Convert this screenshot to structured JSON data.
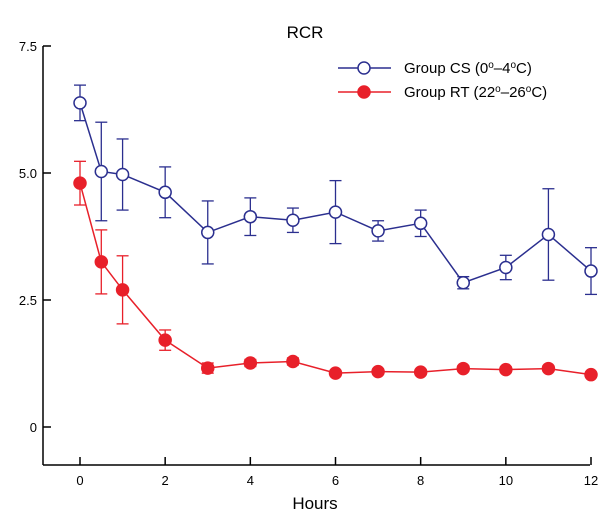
{
  "chart_data": {
    "type": "line",
    "title": "RCR",
    "xlabel": "Hours",
    "ylabel": "",
    "xlim": [
      -0.85,
      12.1
    ],
    "ylim": [
      -1.5,
      7.5
    ],
    "x_ticks": [
      0,
      2,
      4,
      6,
      8,
      10,
      12
    ],
    "x_tick_labels": [
      "0",
      "2",
      "4",
      "6",
      "8",
      "10",
      "12"
    ],
    "y_ticks": [
      0,
      2.5,
      5.0,
      7.5
    ],
    "y_tick_labels": [
      "0",
      "2.5",
      "5.0",
      "7.5"
    ],
    "grid": false,
    "legend_position": "top-right",
    "series": [
      {
        "name": "Group CS (0°–4°C)",
        "name_parts": [
          "Group CS (0",
          "o",
          "–4",
          "o",
          "C)"
        ],
        "color": "#2b2f8f",
        "marker": "open-circle",
        "x": [
          0,
          0.5,
          1,
          2,
          3,
          4,
          5,
          6,
          7,
          8,
          9,
          10,
          11,
          12
        ],
        "y": [
          6.38,
          5.03,
          4.97,
          4.62,
          3.83,
          4.14,
          4.07,
          4.23,
          3.86,
          4.01,
          2.84,
          3.14,
          3.79,
          3.07
        ],
        "error": [
          0.35,
          0.97,
          0.7,
          0.5,
          0.62,
          0.37,
          0.24,
          0.62,
          0.2,
          0.26,
          0.12,
          0.24,
          0.9,
          0.46
        ]
      },
      {
        "name": "Group RT (22°–26°C)",
        "name_parts": [
          "Group RT (22",
          "o",
          "–26",
          "o",
          "C)"
        ],
        "color": "#e8202a",
        "marker": "filled-circle",
        "x": [
          0,
          0.5,
          1,
          2,
          3,
          4,
          5,
          6,
          7,
          8,
          9,
          10,
          11,
          12
        ],
        "y": [
          4.8,
          3.25,
          2.7,
          1.71,
          1.16,
          1.26,
          1.29,
          1.06,
          1.09,
          1.08,
          1.15,
          1.13,
          1.15,
          1.03
        ],
        "error": [
          0.43,
          0.63,
          0.67,
          0.2,
          0.1,
          0.07,
          0.07,
          0.05,
          0.05,
          0.05,
          0.05,
          0.05,
          0.05,
          0.05
        ]
      }
    ]
  }
}
